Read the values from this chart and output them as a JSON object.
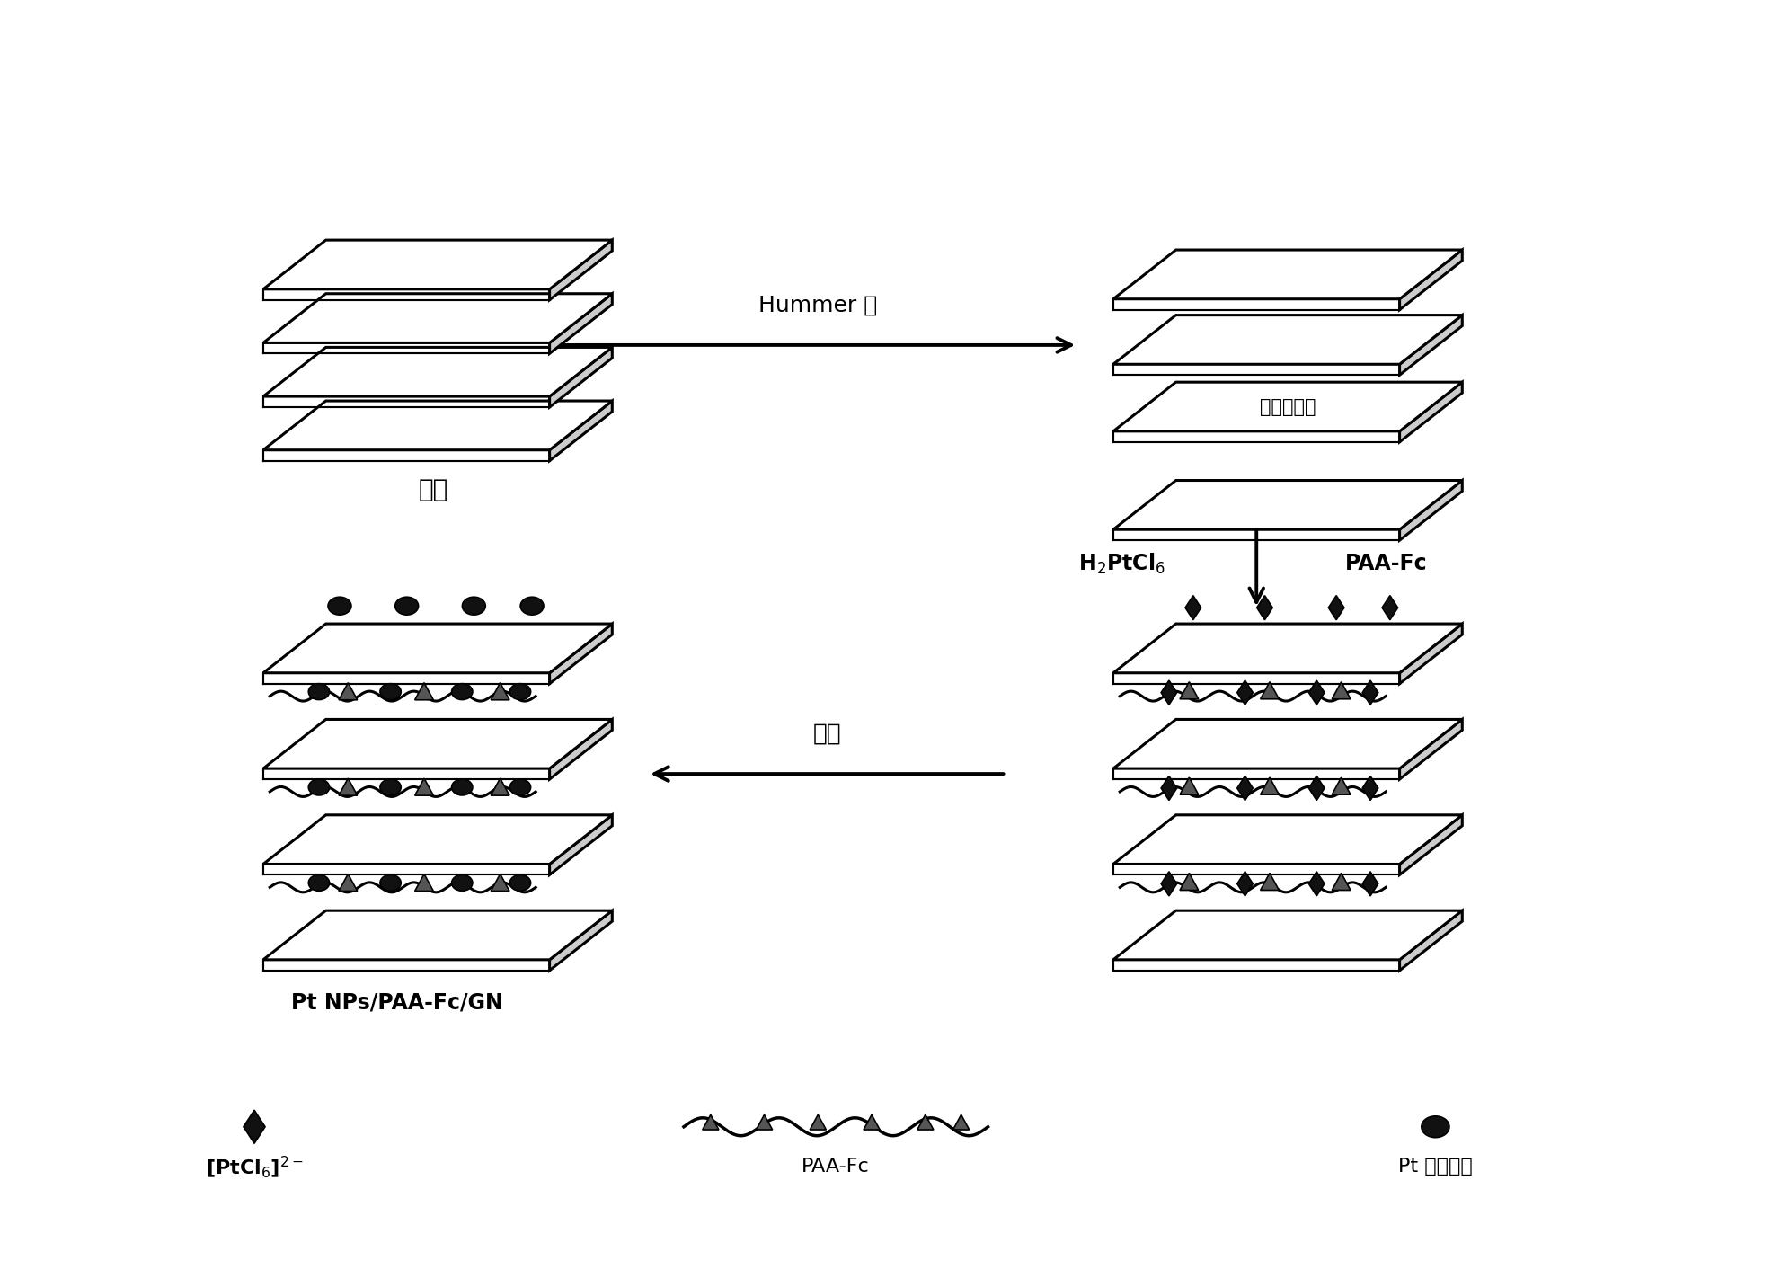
{
  "bg_color": "#ffffff",
  "text_color": "#000000",
  "graphite_label": "石墨",
  "graphite_oxide_label": "氧化石墨烯",
  "hummer_label": "Hummer 法",
  "h2ptcl6_label": "H$_2$PtCl$_6$",
  "paafc_label": "PAA-Fc",
  "reduction_label": "还原",
  "product_label": "Pt NPs/PAA-Fc/GN",
  "ptcl6_label": "[PtCl$_6$]$^{2-}$",
  "paafc_legend_label": "PAA-Fc",
  "pt_np_label": "Pt 纳米粒子"
}
